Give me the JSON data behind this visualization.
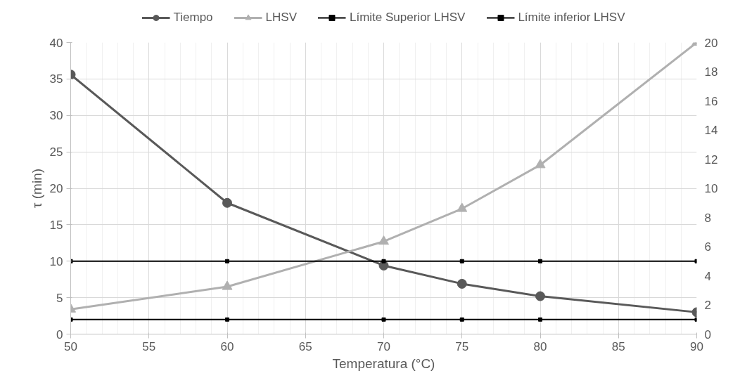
{
  "chart_data": {
    "type": "line",
    "xlabel": "Temperatura (°C)",
    "ylabel": "τ (min)",
    "x": [
      50,
      60,
      70,
      75,
      80,
      90
    ],
    "xlim": [
      50,
      90
    ],
    "xticks": [
      50,
      55,
      60,
      65,
      70,
      75,
      80,
      85,
      90
    ],
    "ylim": [
      0,
      40
    ],
    "yticks": [
      0,
      5,
      10,
      15,
      20,
      25,
      30,
      35,
      40
    ],
    "y2lim": [
      0,
      20
    ],
    "y2ticks": [
      0,
      2,
      4,
      6,
      8,
      10,
      12,
      14,
      16,
      18,
      20
    ],
    "grid": true,
    "legend": "top",
    "series": [
      {
        "name": "Tiempo",
        "color": "#595959",
        "marker": "circle",
        "values": [
          35.6,
          18,
          9.4,
          6.9,
          5.2,
          3.0
        ]
      },
      {
        "name": "LHSV",
        "color": "#b0b0b0",
        "marker": "triangle",
        "axis": "y2",
        "values": [
          1.7,
          3.25,
          6.35,
          8.6,
          11.6,
          20
        ]
      },
      {
        "name": "Límite Superior LHSV",
        "color": "#000000",
        "marker": "square",
        "axis": "y2",
        "values": [
          5,
          5,
          5,
          5,
          5,
          5
        ]
      },
      {
        "name": "Límite inferior LHSV",
        "color": "#000000",
        "marker": "square",
        "axis": "y2",
        "values": [
          1,
          1,
          1,
          1,
          1,
          1
        ]
      }
    ]
  }
}
